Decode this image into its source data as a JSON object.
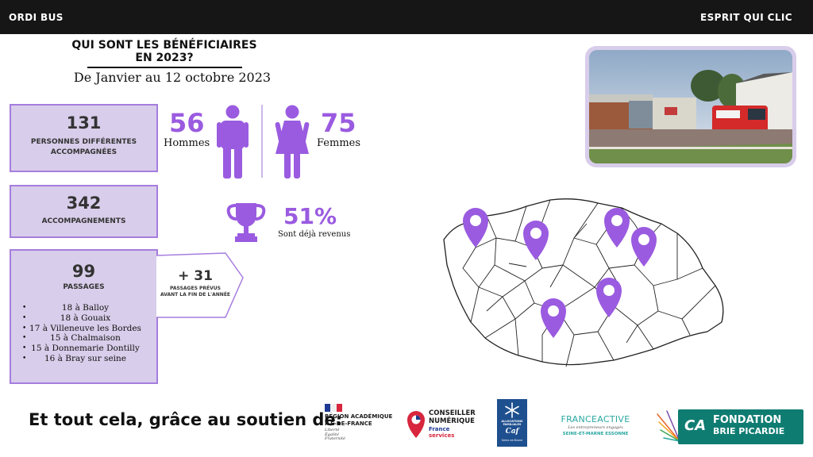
{
  "header": {
    "left": "ORDI BUS",
    "right": "ESPRIT QUI CLIC"
  },
  "title": {
    "line1": "QUI SONT LES BÉNÉFICIAIRES",
    "line2": "EN 2023?",
    "subtitle": "De Janvier au 12 octobre 2023"
  },
  "stats": {
    "persons": {
      "value": "131",
      "label_line1": "PERSONNES DIFFÉRENTES",
      "label_line2": "ACCOMPAGNÉES"
    },
    "accompaniments": {
      "value": "342",
      "label": "ACCOMPAGNEMENTS"
    },
    "passages": {
      "value": "99",
      "label": "PASSAGES",
      "locations": [
        "18 à Balloy",
        "18 à Gouaix",
        "17 à Villeneuve les Bordes",
        "15 à Chalmaison",
        "15 à Donnemarie Dontilly",
        "16 à Bray sur seine"
      ]
    },
    "planned": {
      "value": "+ 31",
      "label_line1": "PASSAGES PRÉVUS",
      "label_line2": "AVANT LA FIN DE L'ANNÉE"
    }
  },
  "gender": {
    "men_value": "56",
    "men_label": "Hommes",
    "women_value": "75",
    "women_label": "Femmes"
  },
  "return_rate": {
    "value": "51%",
    "label": "Sont déjà revenus"
  },
  "footer": {
    "lead": "Et tout cela, grâce au soutien de:"
  },
  "logos": {
    "region": {
      "line1": "RÉGION ACADÉMIQUE",
      "line2": "ÎLE-DE-FRANCE",
      "motto1": "Liberté",
      "motto2": "Égalité",
      "motto3": "Fraternité"
    },
    "conseiller": {
      "line1": "CONSEILLER",
      "line2": "NUMÉRIQUE",
      "line3": "France",
      "line4": "services"
    },
    "caf": {
      "line1": "ALLOCATIONS",
      "line2": "FAMILIALES",
      "brand": "Caf",
      "sub": "Seine-et-Marne"
    },
    "franceactive": {
      "brand": "FRANCEACTIVE",
      "tagline": "Les entrepreneurs engagés",
      "region": "SEINE-ET-MARNE ESSONNE"
    },
    "fondation": {
      "line1": "FONDATION",
      "line2": "BRIE PICARDIE",
      "mark": "CA"
    }
  },
  "colors": {
    "accent": "#9a5be0",
    "card_bg": "#d8cdea",
    "card_border": "#a67dde",
    "header_bg": "#161616"
  }
}
